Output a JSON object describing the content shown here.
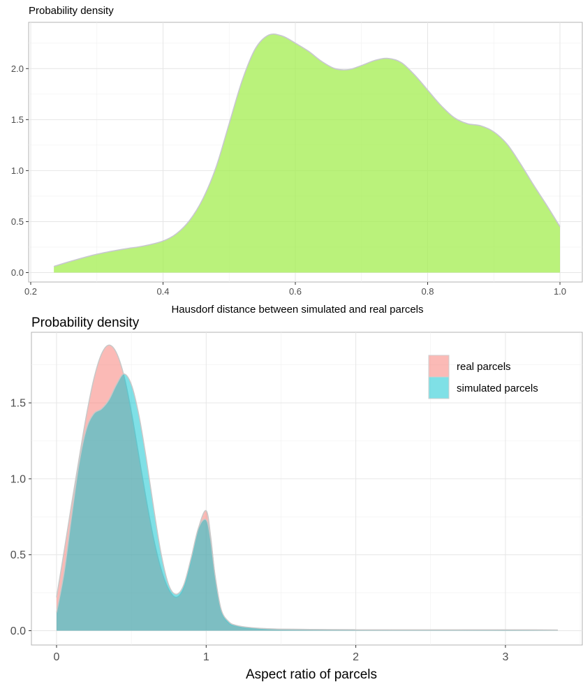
{
  "chart_data": [
    {
      "type": "area",
      "title": "Probability density",
      "xlabel": "Hausdorf distance between simulated and real parcels",
      "ylabel": "",
      "xlim": [
        0.2,
        1.0
      ],
      "ylim": [
        0,
        2.4
      ],
      "x_ticks": [
        0.2,
        0.4,
        0.6,
        0.8,
        1.0
      ],
      "x_tick_labels": [
        "0.2",
        "0.4",
        "0.6",
        "0.8",
        "1.0"
      ],
      "y_ticks": [
        0,
        0.5,
        1,
        1.5,
        2
      ],
      "y_tick_labels": [
        "0.0",
        "0.5",
        "1.0",
        "1.5",
        "2.0"
      ],
      "grid": true,
      "legend": "none",
      "colors": {
        "fill": "#a3ee4f",
        "stroke": "#c8c8d0"
      },
      "series": [
        {
          "x": [
            0.235,
            0.26,
            0.3,
            0.34,
            0.37,
            0.4,
            0.42,
            0.44,
            0.46,
            0.48,
            0.5,
            0.52,
            0.54,
            0.56,
            0.58,
            0.6,
            0.62,
            0.64,
            0.66,
            0.68,
            0.7,
            0.72,
            0.74,
            0.76,
            0.78,
            0.8,
            0.82,
            0.84,
            0.86,
            0.88,
            0.9,
            0.92,
            0.94,
            0.96,
            0.98,
            1.0
          ],
          "y": [
            0.06,
            0.11,
            0.18,
            0.23,
            0.26,
            0.31,
            0.38,
            0.51,
            0.72,
            1.03,
            1.46,
            1.89,
            2.2,
            2.33,
            2.32,
            2.25,
            2.17,
            2.07,
            2.0,
            1.99,
            2.03,
            2.08,
            2.1,
            2.06,
            1.94,
            1.79,
            1.64,
            1.52,
            1.46,
            1.44,
            1.38,
            1.26,
            1.07,
            0.86,
            0.66,
            0.45
          ]
        }
      ]
    },
    {
      "type": "area",
      "title": "Probability density",
      "xlabel": "Aspect ratio of parcels",
      "ylabel": "",
      "xlim": [
        -0.16,
        3.52
      ],
      "ylim": [
        -0.09,
        1.98
      ],
      "x_ticks": [
        0,
        1,
        2,
        3
      ],
      "x_tick_labels": [
        "0",
        "1",
        "2",
        "3"
      ],
      "y_ticks": [
        0,
        0.5,
        1,
        1.5
      ],
      "y_tick_labels": [
        "0.0",
        "0.5",
        "1.0",
        "1.5"
      ],
      "grid": true,
      "legend": "top-right",
      "series": [
        {
          "name": "real parcels",
          "color": "#f8766d",
          "x": [
            0.0,
            0.05,
            0.1,
            0.15,
            0.2,
            0.25,
            0.3,
            0.35,
            0.4,
            0.45,
            0.5,
            0.55,
            0.6,
            0.65,
            0.7,
            0.75,
            0.8,
            0.85,
            0.9,
            0.95,
            1.0,
            1.03,
            1.06,
            1.1,
            1.15,
            1.2,
            1.3,
            1.5,
            2.0,
            2.5,
            3.0,
            3.35
          ],
          "y": [
            0.22,
            0.52,
            0.83,
            1.13,
            1.42,
            1.66,
            1.82,
            1.88,
            1.83,
            1.68,
            1.44,
            1.15,
            0.86,
            0.6,
            0.4,
            0.27,
            0.22,
            0.28,
            0.46,
            0.68,
            0.79,
            0.62,
            0.35,
            0.13,
            0.05,
            0.03,
            0.015,
            0.01,
            0.006,
            0.005,
            0.006,
            0.004
          ]
        },
        {
          "name": "simulated parcels",
          "color": "#00c1cd",
          "x": [
            0.0,
            0.05,
            0.1,
            0.15,
            0.2,
            0.25,
            0.3,
            0.35,
            0.4,
            0.45,
            0.5,
            0.55,
            0.6,
            0.65,
            0.7,
            0.75,
            0.8,
            0.85,
            0.9,
            0.95,
            1.0,
            1.03,
            1.06,
            1.1,
            1.15,
            1.2,
            1.3,
            1.5,
            2.0,
            2.5,
            3.0,
            3.35
          ],
          "y": [
            0.12,
            0.38,
            0.75,
            1.1,
            1.33,
            1.43,
            1.46,
            1.52,
            1.62,
            1.69,
            1.62,
            1.42,
            1.13,
            0.8,
            0.5,
            0.3,
            0.24,
            0.3,
            0.48,
            0.68,
            0.73,
            0.6,
            0.36,
            0.14,
            0.06,
            0.035,
            0.02,
            0.01,
            0.006,
            0.005,
            0.006,
            0.004
          ]
        }
      ]
    }
  ]
}
